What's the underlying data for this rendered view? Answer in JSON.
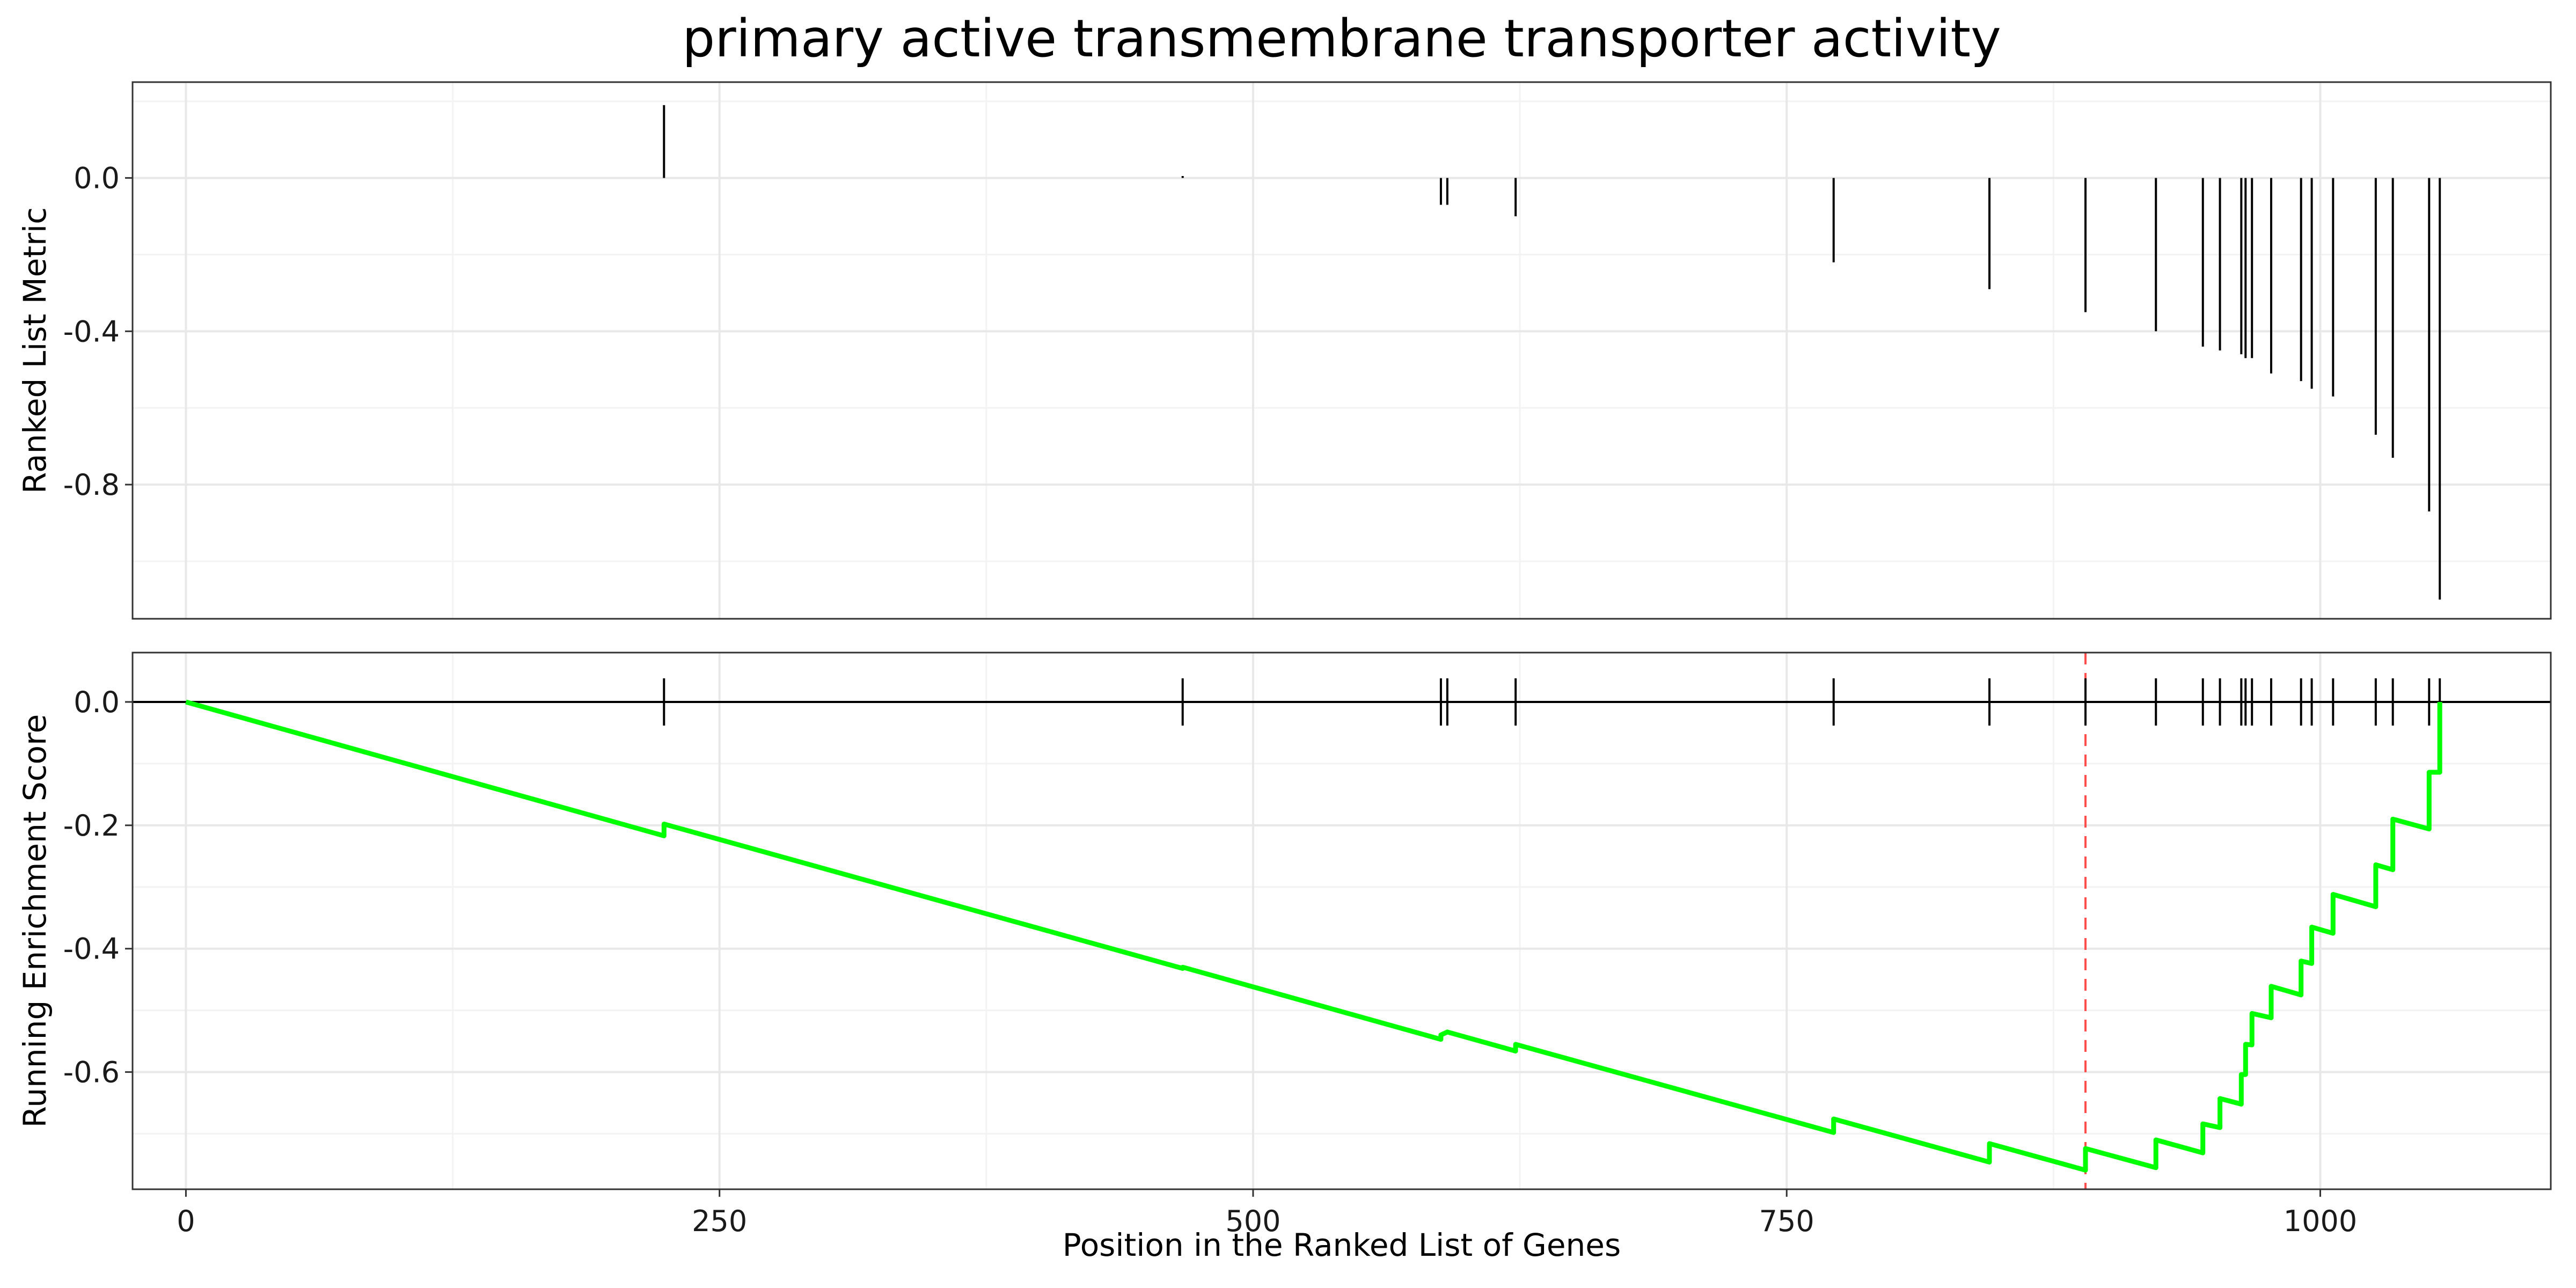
{
  "chart_data": {
    "type": "line",
    "title": "primary active transmembrane transporter activity",
    "xlabel": "Position in the Ranked List of Genes",
    "xlim": [
      -25,
      1108
    ],
    "x_ticks": [
      0,
      250,
      500,
      750,
      1000
    ],
    "x_tick_labels": [
      "0",
      "250",
      "500",
      "750",
      "1000"
    ],
    "grid": true,
    "top_panel": {
      "type": "bar",
      "ylabel": "Ranked List Metric",
      "ylim": [
        -1.15,
        0.25
      ],
      "y_ticks": [
        0.0,
        -0.4,
        -0.8
      ],
      "y_tick_labels": [
        "0.0",
        "-0.4",
        "-0.8"
      ],
      "x": [
        224,
        467,
        588,
        591,
        623,
        772,
        845,
        890,
        923,
        945,
        953,
        963,
        965,
        968,
        977,
        991,
        996,
        1006,
        1026,
        1034,
        1051,
        1056
      ],
      "values": [
        0.19,
        0.005,
        -0.07,
        -0.07,
        -0.1,
        -0.22,
        -0.29,
        -0.35,
        -0.4,
        -0.44,
        -0.45,
        -0.46,
        -0.47,
        -0.47,
        -0.51,
        -0.53,
        -0.55,
        -0.57,
        -0.67,
        -0.73,
        -0.87,
        -1.1
      ]
    },
    "bottom_panel": {
      "type": "line",
      "ylabel": "Running Enrichment Score",
      "ylim": [
        -0.79,
        0.08
      ],
      "y_ticks": [
        0.0,
        -0.2,
        -0.4,
        -0.6
      ],
      "y_tick_labels": [
        "0.0",
        "-0.2",
        "-0.4",
        "-0.6"
      ],
      "hit_positions": [
        224,
        467,
        588,
        591,
        623,
        772,
        845,
        890,
        923,
        945,
        953,
        963,
        965,
        968,
        977,
        991,
        996,
        1006,
        1026,
        1034,
        1051,
        1056
      ],
      "max_deviation_x": 890,
      "series": [
        {
          "color": "#00ff00",
          "x": [
            0,
            224,
            224,
            467,
            467,
            588,
            588,
            591,
            591,
            623,
            623,
            772,
            772,
            845,
            845,
            890,
            890,
            923,
            923,
            945,
            945,
            953,
            953,
            963,
            963,
            965,
            965,
            968,
            968,
            977,
            977,
            991,
            991,
            996,
            996,
            1006,
            1006,
            1026,
            1026,
            1034,
            1034,
            1051,
            1051,
            1056,
            1056
          ],
          "values": [
            0.0,
            -0.217,
            -0.198,
            -0.432,
            -0.43,
            -0.547,
            -0.54,
            -0.535,
            -0.535,
            -0.566,
            -0.555,
            -0.698,
            -0.676,
            -0.746,
            -0.716,
            -0.759,
            -0.724,
            -0.755,
            -0.71,
            -0.731,
            -0.684,
            -0.69,
            -0.643,
            -0.652,
            -0.604,
            -0.604,
            -0.555,
            -0.556,
            -0.505,
            -0.512,
            -0.461,
            -0.475,
            -0.42,
            -0.424,
            -0.365,
            -0.375,
            -0.312,
            -0.332,
            -0.264,
            -0.272,
            -0.19,
            -0.206,
            -0.114,
            -0.114,
            0.0
          ]
        }
      ]
    }
  }
}
